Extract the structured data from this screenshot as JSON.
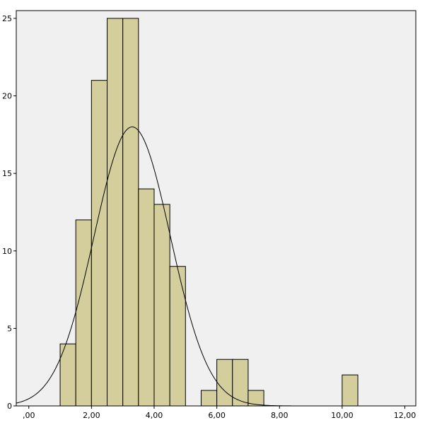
{
  "chart_data": {
    "type": "bar",
    "subtype": "histogram",
    "title": "",
    "xlabel": "",
    "ylabel": "",
    "xlim": [
      -0.4,
      12.35
    ],
    "ylim": [
      0,
      25.5
    ],
    "bin_width": 0.5,
    "bins": [
      {
        "x0": 1.0,
        "x1": 1.5,
        "count": 4
      },
      {
        "x0": 1.5,
        "x1": 2.0,
        "count": 12
      },
      {
        "x0": 2.0,
        "x1": 2.5,
        "count": 21
      },
      {
        "x0": 2.5,
        "x1": 3.0,
        "count": 25
      },
      {
        "x0": 3.0,
        "x1": 3.5,
        "count": 25
      },
      {
        "x0": 3.5,
        "x1": 4.0,
        "count": 14
      },
      {
        "x0": 4.0,
        "x1": 4.5,
        "count": 13
      },
      {
        "x0": 4.5,
        "x1": 5.0,
        "count": 9
      },
      {
        "x0": 5.5,
        "x1": 6.0,
        "count": 1
      },
      {
        "x0": 6.0,
        "x1": 6.5,
        "count": 3
      },
      {
        "x0": 6.5,
        "x1": 7.0,
        "count": 3
      },
      {
        "x0": 7.0,
        "x1": 7.5,
        "count": 1
      },
      {
        "x0": 10.0,
        "x1": 10.5,
        "count": 2
      }
    ],
    "x_ticks": [
      {
        "value": 0,
        "label": ",00"
      },
      {
        "value": 2,
        "label": "2,00"
      },
      {
        "value": 4,
        "label": "4,00"
      },
      {
        "value": 6,
        "label": "6,00"
      },
      {
        "value": 8,
        "label": "8,00"
      },
      {
        "value": 10,
        "label": "10,00"
      },
      {
        "value": 12,
        "label": "12,00"
      }
    ],
    "y_ticks": [
      {
        "value": 0,
        "label": "0"
      },
      {
        "value": 5,
        "label": "5"
      },
      {
        "value": 10,
        "label": "10"
      },
      {
        "value": 15,
        "label": "15"
      },
      {
        "value": 20,
        "label": "20"
      },
      {
        "value": 25,
        "label": "25"
      }
    ],
    "normal_curve": {
      "mean": 3.3,
      "sd": 1.22,
      "peak": 18
    },
    "grid": false,
    "legend": "none",
    "colors": {
      "plot_background": "#f0f0f0",
      "bar_fill": "#d3ce9b",
      "bar_stroke": "#000000",
      "curve": "#000000"
    }
  }
}
